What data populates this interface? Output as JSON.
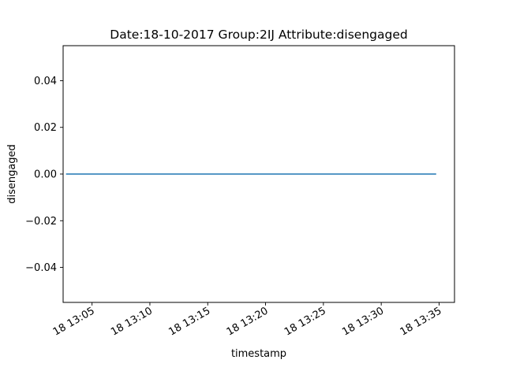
{
  "chart_data": {
    "type": "line",
    "title": "Date:18-10-2017  Group:2IJ Attribute:disengaged",
    "xlabel": "timestamp",
    "ylabel": "disengaged",
    "x_type": "datetime",
    "x_tick_labels": [
      "18 13:05",
      "18 13:10",
      "18 13:15",
      "18 13:20",
      "18 13:25",
      "18 13:30",
      "18 13:35"
    ],
    "x_ticks": [
      "2017-10-18T13:05",
      "2017-10-18T13:10",
      "2017-10-18T13:15",
      "2017-10-18T13:20",
      "2017-10-18T13:25",
      "2017-10-18T13:30",
      "2017-10-18T13:35"
    ],
    "xlim": [
      "2017-10-18T13:02:30",
      "2017-10-18T13:36:20"
    ],
    "y_tick_labels": [
      "0.04",
      "0.02",
      "0.00",
      "−0.02",
      "−0.04"
    ],
    "y_ticks": [
      0.04,
      0.02,
      0.0,
      -0.02,
      -0.04
    ],
    "ylim": [
      -0.055,
      0.055
    ],
    "grid": false,
    "legend": "none",
    "series": [
      {
        "color": "#1f77b4",
        "x": [
          "2017-10-18T13:02:45",
          "2017-10-18T13:34:45"
        ],
        "y": [
          0,
          0
        ]
      }
    ]
  }
}
